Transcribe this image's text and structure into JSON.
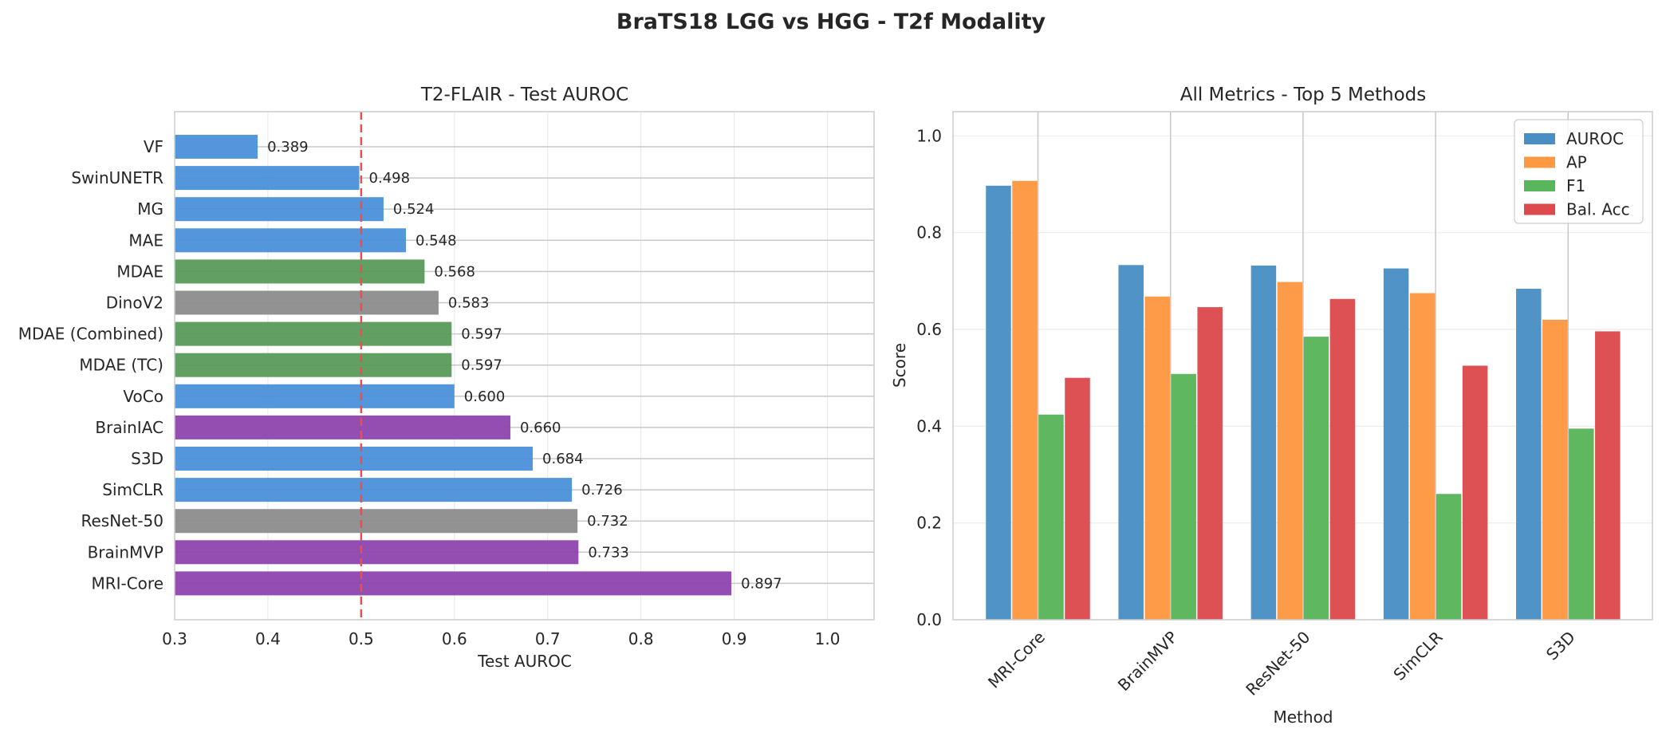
{
  "figure": {
    "suptitle": "BraTS18 LGG vs HGG - T2f Modality"
  },
  "colors": {
    "blue": "#4a90d9",
    "green": "#5a9a5a",
    "gray": "#8c8c8c",
    "purple": "#8e44ad",
    "reference_line": "#e85050",
    "AUROC": "#4a8fc4",
    "AP": "#fd9843",
    "F1": "#5ab65a",
    "Bal. Acc": "#dc4a4e"
  },
  "chart_data": [
    {
      "type": "bar",
      "orientation": "horizontal",
      "title": "T2-FLAIR - Test AUROC",
      "xlabel": "Test AUROC",
      "ylabel": "",
      "xlim": [
        0.3,
        1.05
      ],
      "xticks": [
        0.3,
        0.4,
        0.5,
        0.6,
        0.7,
        0.8,
        0.9,
        1.0
      ],
      "tick_labels": [
        "0.3",
        "0.4",
        "0.5",
        "0.6",
        "0.7",
        "0.8",
        "0.9",
        "1.0"
      ],
      "reference_line": 0.5,
      "grid": true,
      "categories": [
        "VF",
        "SwinUNETR",
        "MG",
        "MAE",
        "MDAE",
        "DinoV2",
        "MDAE (Combined)",
        "MDAE (TC)",
        "VoCo",
        "BrainIAC",
        "S3D",
        "SimCLR",
        "ResNet-50",
        "BrainMVP",
        "MRI-Core"
      ],
      "values": [
        0.389,
        0.498,
        0.524,
        0.548,
        0.568,
        0.583,
        0.597,
        0.597,
        0.6,
        0.66,
        0.684,
        0.726,
        0.732,
        0.733,
        0.897
      ],
      "labels": [
        "0.389",
        "0.498",
        "0.524",
        "0.548",
        "0.568",
        "0.583",
        "0.597",
        "0.597",
        "0.600",
        "0.660",
        "0.684",
        "0.726",
        "0.732",
        "0.733",
        "0.897"
      ],
      "bar_colors": [
        "blue",
        "blue",
        "blue",
        "blue",
        "green",
        "gray",
        "green",
        "green",
        "blue",
        "purple",
        "blue",
        "blue",
        "gray",
        "purple",
        "purple"
      ]
    },
    {
      "type": "bar",
      "title": "All Metrics - Top 5 Methods",
      "xlabel": "Method",
      "ylabel": "Score",
      "ylim": [
        0,
        1.05
      ],
      "yticks": [
        0.0,
        0.2,
        0.4,
        0.6,
        0.8,
        1.0
      ],
      "tick_labels": [
        "0.0",
        "0.2",
        "0.4",
        "0.6",
        "0.8",
        "1.0"
      ],
      "grid": true,
      "legend": "top-right",
      "categories": [
        "MRI-Core",
        "BrainMVP",
        "ResNet-50",
        "SimCLR",
        "S3D"
      ],
      "series": [
        {
          "name": "AUROC",
          "values": [
            0.897,
            0.733,
            0.732,
            0.726,
            0.684
          ]
        },
        {
          "name": "AP",
          "values": [
            0.907,
            0.668,
            0.698,
            0.675,
            0.62
          ]
        },
        {
          "name": "F1",
          "values": [
            0.424,
            0.508,
            0.585,
            0.26,
            0.395
          ]
        },
        {
          "name": "Bal. Acc",
          "values": [
            0.5,
            0.646,
            0.663,
            0.525,
            0.596
          ]
        }
      ]
    }
  ]
}
